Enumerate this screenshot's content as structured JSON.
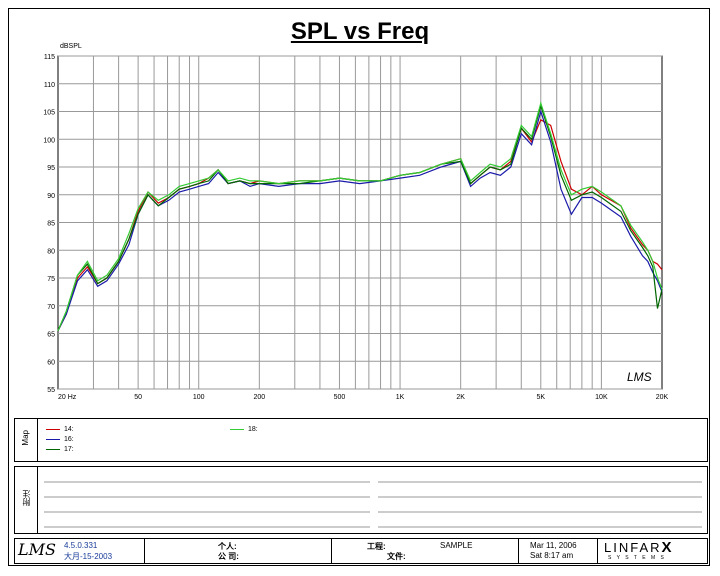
{
  "chart_data": {
    "type": "line",
    "title": "SPL vs Freq",
    "ylabel": "dBSPL",
    "xscale": "log",
    "xlim": [
      20,
      20000
    ],
    "ylim": [
      55,
      115
    ],
    "grid": true,
    "legend": "bottom panel",
    "x_tick_labels": [
      {
        "v": 20,
        "t": "20  Hz"
      },
      {
        "v": 50,
        "t": "50"
      },
      {
        "v": 100,
        "t": "100"
      },
      {
        "v": 200,
        "t": "200"
      },
      {
        "v": 500,
        "t": "500"
      },
      {
        "v": 1000,
        "t": "1K"
      },
      {
        "v": 2000,
        "t": "2K"
      },
      {
        "v": 5000,
        "t": "5K"
      },
      {
        "v": 10000,
        "t": "10K"
      },
      {
        "v": 20000,
        "t": "20K"
      }
    ],
    "y_ticks": [
      55,
      60,
      65,
      70,
      75,
      80,
      85,
      90,
      95,
      100,
      105,
      110,
      115
    ],
    "x": [
      20,
      22,
      25,
      28,
      31.5,
      35,
      40,
      45,
      50,
      56,
      63,
      71,
      80,
      90,
      100,
      112,
      125,
      140,
      160,
      180,
      200,
      250,
      315,
      400,
      500,
      630,
      800,
      1000,
      1250,
      1600,
      2000,
      2240,
      2500,
      2800,
      3150,
      3550,
      4000,
      4500,
      5000,
      5600,
      6300,
      7100,
      8000,
      9000,
      10000,
      12500,
      14000,
      16000,
      17000,
      18000,
      19000,
      20000
    ],
    "series": [
      {
        "name": "14:",
        "color": "#cc0000",
        "values": [
          65.5,
          68.5,
          75,
          77,
          74,
          75,
          78,
          82,
          87,
          90.5,
          88.5,
          89.5,
          91,
          91.5,
          92,
          93,
          94.5,
          92,
          92.5,
          92,
          92.5,
          92,
          92.5,
          92.5,
          93,
          92.5,
          92.5,
          93.5,
          94,
          95.5,
          96.5,
          92,
          93.5,
          95,
          94.5,
          96,
          102,
          99.5,
          103.5,
          102.5,
          96,
          91,
          90,
          91.5,
          90,
          88,
          84,
          81,
          80,
          78,
          77.5,
          76.5
        ]
      },
      {
        "name": "16:",
        "color": "#1a1aaa",
        "values": [
          65.5,
          68.5,
          74.5,
          76.5,
          73.5,
          74.5,
          77.5,
          81,
          86.5,
          90,
          88,
          89,
          90.5,
          91,
          91.5,
          92,
          94,
          92,
          92.5,
          91.5,
          92,
          91.5,
          92,
          92,
          92.5,
          92,
          92.5,
          93,
          93.5,
          95,
          96,
          91.5,
          93,
          94,
          93.5,
          95,
          101,
          99,
          105,
          99.5,
          91,
          86.5,
          89.5,
          89.5,
          88.5,
          86,
          82.5,
          79,
          78,
          76,
          74.5,
          72.5
        ]
      },
      {
        "name": "17:",
        "color": "#006600",
        "values": [
          65.5,
          69,
          75.5,
          77.5,
          74,
          75,
          78,
          82,
          86.5,
          90,
          88,
          89.5,
          91,
          91.5,
          92,
          92.5,
          94.5,
          92,
          92.5,
          92,
          92,
          92,
          92,
          92.5,
          93,
          92.5,
          92.5,
          93.5,
          94,
          95.5,
          96,
          92,
          93.5,
          95,
          94.5,
          95.5,
          102,
          100,
          106,
          100.5,
          93.5,
          89,
          90,
          90.5,
          89.5,
          87,
          83.5,
          80.5,
          79,
          77,
          69.5,
          73
        ]
      },
      {
        "name": "18:",
        "color": "#33cc33",
        "values": [
          65.5,
          69,
          75.5,
          78,
          74.5,
          75.5,
          78.5,
          83,
          87.5,
          90.5,
          89,
          90,
          91.5,
          92,
          92.5,
          93,
          94.5,
          92.5,
          93,
          92.5,
          92.5,
          92,
          92.5,
          92.5,
          93,
          92.5,
          92.5,
          93.5,
          94,
          95.5,
          96.5,
          92.5,
          94,
          95.5,
          95,
          96.5,
          102.5,
          100.5,
          106.5,
          101,
          94.5,
          90,
          91,
          91.5,
          90.5,
          88,
          84.5,
          81.5,
          80,
          78,
          75,
          73
        ]
      }
    ]
  },
  "panels": {
    "map_label": "Map",
    "notes_label": "附注"
  },
  "footer": {
    "version": "4.5.0.331",
    "build_date": "大月-15-2003",
    "person_label": "个人:",
    "company_label": "公 司:",
    "project_label": "工程:",
    "project_value": "SAMPLE",
    "file_label": "文件:",
    "date": "Mar 11, 2006",
    "time": "Sat  8:17 am",
    "brand": "LINFAR",
    "brand_x": "X",
    "brand_sub": "S Y S T E M S"
  },
  "logo_text": "LMS"
}
